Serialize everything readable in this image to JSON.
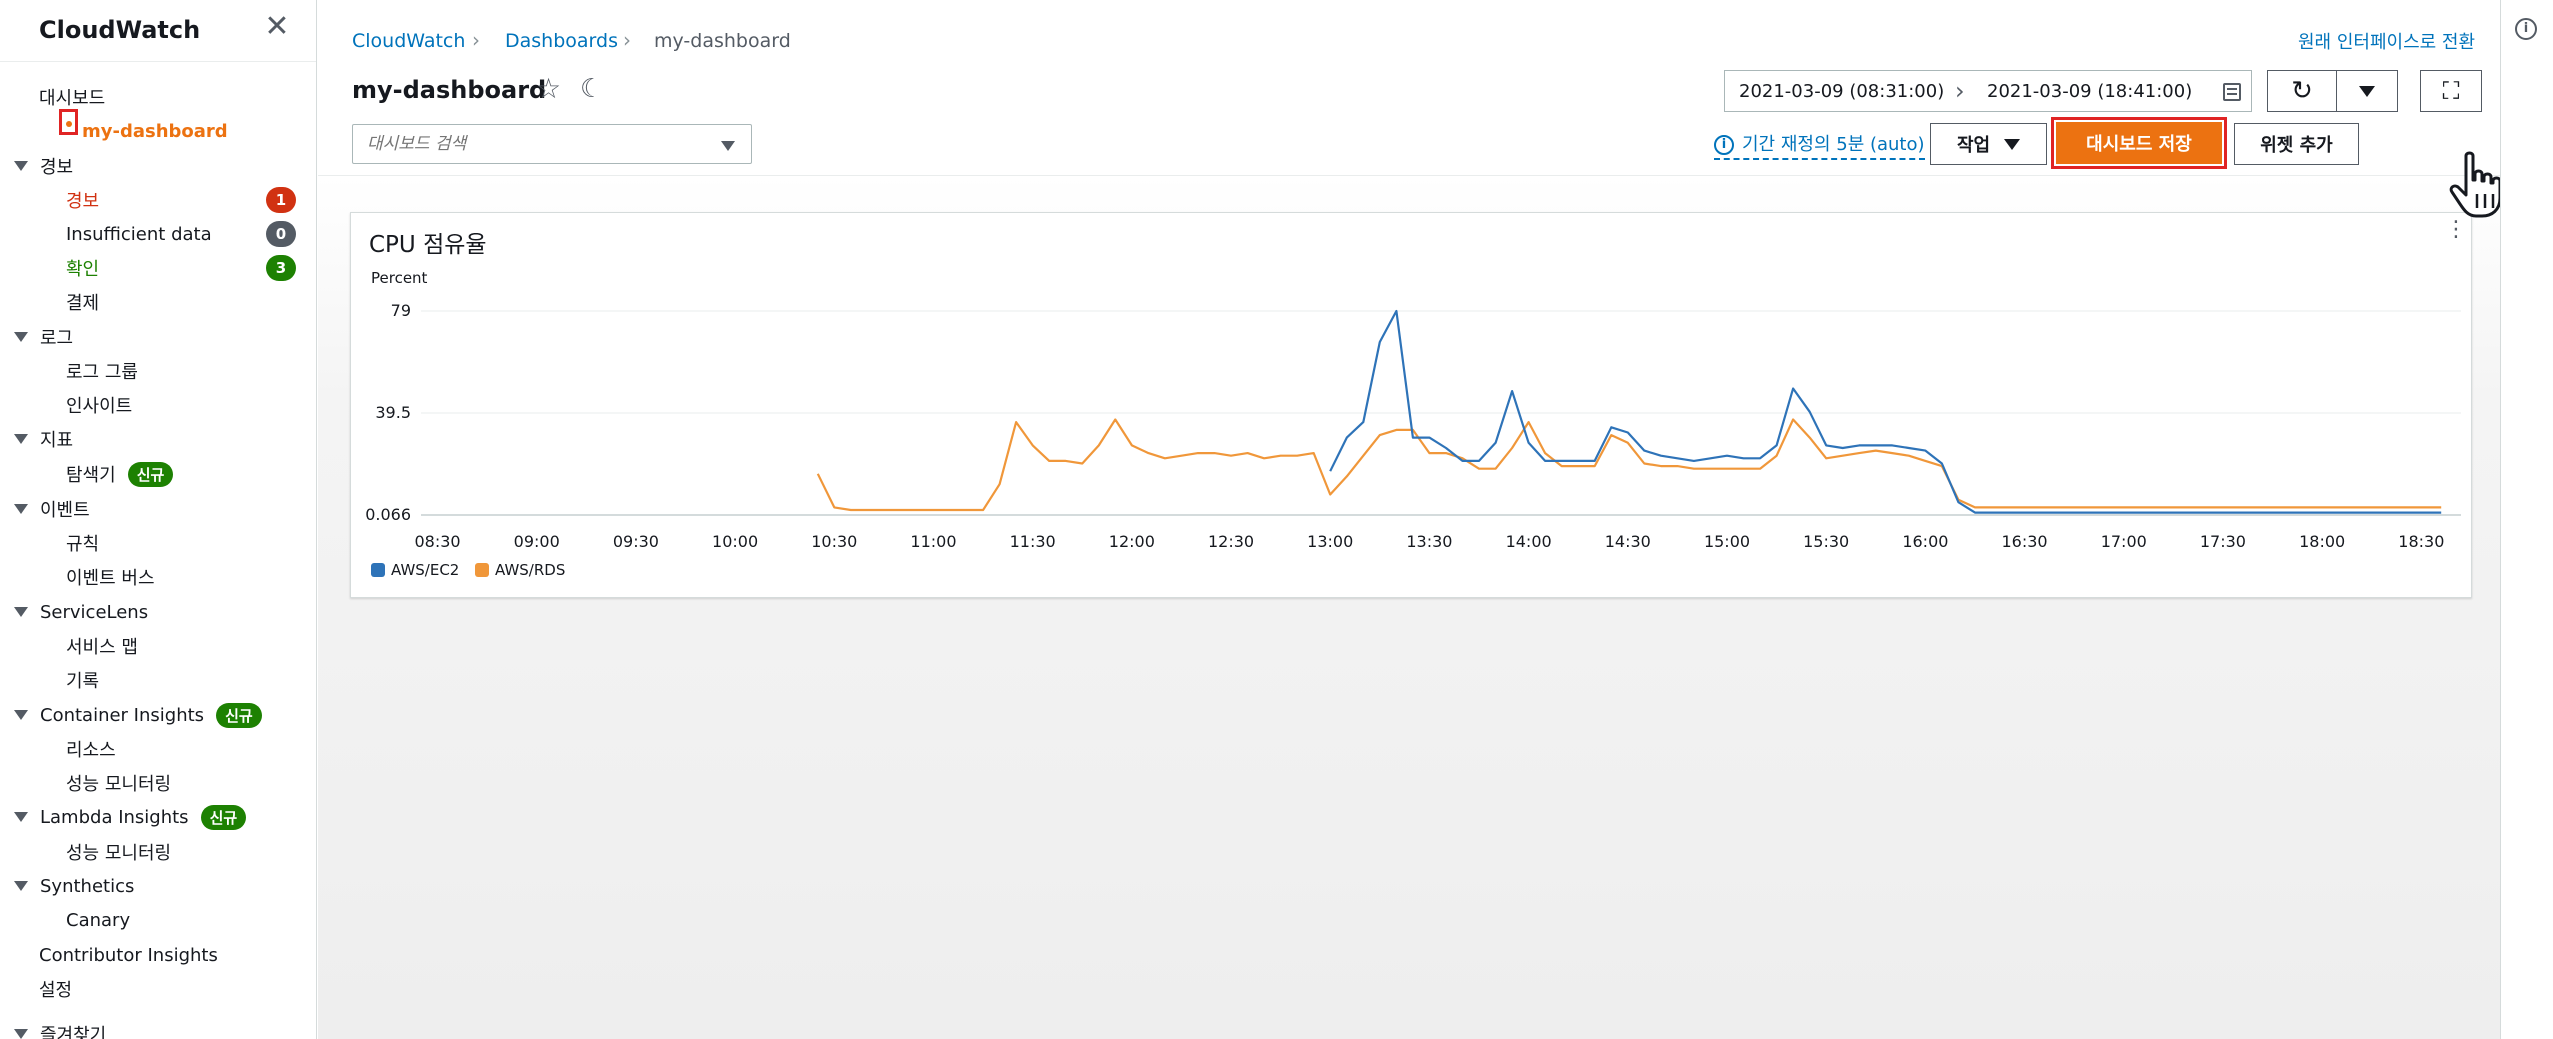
{
  "sidebar": {
    "title": "CloudWatch",
    "close_icon": "close-icon",
    "items": [
      {
        "label": "대시보드",
        "level": "head",
        "caret": false
      },
      {
        "label": "my-dashboard",
        "level": "sub",
        "active": true
      },
      {
        "label": "경보",
        "level": "head",
        "caret": true
      },
      {
        "label": "경보",
        "level": "sub",
        "color": "red",
        "badge": "1",
        "badge_color": "#d13212"
      },
      {
        "label": "Insufficient data",
        "level": "sub",
        "badge": "0",
        "badge_color": "#545b64"
      },
      {
        "label": "확인",
        "level": "sub",
        "color": "green",
        "badge": "3",
        "badge_color": "#1d8102"
      },
      {
        "label": "결제",
        "level": "sub"
      },
      {
        "label": "로그",
        "level": "head",
        "caret": true
      },
      {
        "label": "로그 그룹",
        "level": "sub"
      },
      {
        "label": "인사이트",
        "level": "sub"
      },
      {
        "label": "지표",
        "level": "head",
        "caret": true
      },
      {
        "label": "탐색기",
        "level": "sub",
        "new": "신규"
      },
      {
        "label": "이벤트",
        "level": "head",
        "caret": true
      },
      {
        "label": "규칙",
        "level": "sub"
      },
      {
        "label": "이벤트 버스",
        "level": "sub"
      },
      {
        "label": "ServiceLens",
        "level": "head",
        "caret": true
      },
      {
        "label": "서비스 맵",
        "level": "sub"
      },
      {
        "label": "기록",
        "level": "sub"
      },
      {
        "label": "Container Insights",
        "level": "head",
        "caret": true,
        "new": "신규"
      },
      {
        "label": "리소스",
        "level": "sub"
      },
      {
        "label": "성능 모니터링",
        "level": "sub"
      },
      {
        "label": "Lambda Insights",
        "level": "head",
        "caret": true,
        "new": "신규"
      },
      {
        "label": "성능 모니터링",
        "level": "sub"
      },
      {
        "label": "Synthetics",
        "level": "head",
        "caret": true
      },
      {
        "label": "Canary",
        "level": "sub"
      },
      {
        "label": "Contributor Insights",
        "level": "head",
        "caret": false
      },
      {
        "label": "설정",
        "level": "head",
        "caret": false
      },
      {
        "label": "즐겨찾기",
        "level": "head",
        "caret": true
      }
    ]
  },
  "breadcrumb": [
    "CloudWatch",
    "Dashboards",
    "my-dashboard"
  ],
  "switch_link": "원래 인터페이스로 전환",
  "page_title": "my-dashboard",
  "search": {
    "placeholder": "대시보드 검색"
  },
  "time_range": {
    "start": "2021-03-09 (08:31:00)",
    "end": "2021-03-09 (18:41:00)"
  },
  "period_label": "기간 재정의 5분 (auto)",
  "buttons": {
    "action": "작업",
    "save": "대시보드 저장",
    "add_widget": "위젯 추가"
  },
  "colors": {
    "accent": "#ec7211",
    "link": "#0073bb",
    "ec2": "#2e73b8",
    "rds": "#f0973a",
    "highlight": "#e02424"
  },
  "chart_data": {
    "type": "line",
    "title": "CPU 점유율",
    "ylabel": "Percent",
    "ylim": [
      0.066,
      79
    ],
    "y_ticks": [
      "79",
      "39.5",
      "0.066"
    ],
    "x_ticks": [
      "08:30",
      "09:00",
      "09:30",
      "10:00",
      "10:30",
      "11:00",
      "11:30",
      "12:00",
      "12:30",
      "13:00",
      "13:30",
      "14:00",
      "14:30",
      "15:00",
      "15:30",
      "16:00",
      "16:30",
      "17:00",
      "17:30",
      "18:00",
      "18:30"
    ],
    "grid": true,
    "legend_position": "bottom-left",
    "series": [
      {
        "name": "AWS/EC2",
        "color": "#2e73b8",
        "points": [
          [
            "13:00",
            17
          ],
          [
            "13:05",
            30
          ],
          [
            "13:10",
            36
          ],
          [
            "13:15",
            67
          ],
          [
            "13:20",
            79
          ],
          [
            "13:25",
            30
          ],
          [
            "13:30",
            30
          ],
          [
            "13:35",
            26
          ],
          [
            "13:40",
            21
          ],
          [
            "13:45",
            21
          ],
          [
            "13:50",
            28
          ],
          [
            "13:55",
            48
          ],
          [
            "14:00",
            28
          ],
          [
            "14:05",
            21
          ],
          [
            "14:10",
            21
          ],
          [
            "14:15",
            21
          ],
          [
            "14:20",
            21
          ],
          [
            "14:25",
            34
          ],
          [
            "14:30",
            32
          ],
          [
            "14:35",
            25
          ],
          [
            "14:40",
            23
          ],
          [
            "14:45",
            22
          ],
          [
            "14:50",
            21
          ],
          [
            "14:55",
            22
          ],
          [
            "15:00",
            23
          ],
          [
            "15:05",
            22
          ],
          [
            "15:10",
            22
          ],
          [
            "15:15",
            27
          ],
          [
            "15:20",
            49
          ],
          [
            "15:25",
            40
          ],
          [
            "15:30",
            27
          ],
          [
            "15:35",
            26
          ],
          [
            "15:40",
            27
          ],
          [
            "15:45",
            27
          ],
          [
            "15:50",
            27
          ],
          [
            "15:55",
            26
          ],
          [
            "16:00",
            25
          ],
          [
            "16:05",
            20
          ],
          [
            "16:10",
            5
          ],
          [
            "16:15",
            1
          ],
          [
            "16:30",
            1
          ],
          [
            "17:00",
            1
          ],
          [
            "17:30",
            1
          ],
          [
            "18:00",
            1
          ],
          [
            "18:30",
            1
          ],
          [
            "18:36",
            1
          ]
        ]
      },
      {
        "name": "AWS/RDS",
        "color": "#f0973a",
        "points": [
          [
            "10:25",
            16
          ],
          [
            "10:30",
            3
          ],
          [
            "10:35",
            2
          ],
          [
            "10:40",
            2
          ],
          [
            "10:45",
            2
          ],
          [
            "10:50",
            2
          ],
          [
            "10:55",
            2
          ],
          [
            "11:00",
            2
          ],
          [
            "11:05",
            2
          ],
          [
            "11:10",
            2
          ],
          [
            "11:15",
            2
          ],
          [
            "11:20",
            12
          ],
          [
            "11:25",
            36
          ],
          [
            "11:30",
            27
          ],
          [
            "11:35",
            21
          ],
          [
            "11:40",
            21
          ],
          [
            "11:45",
            20
          ],
          [
            "11:50",
            27
          ],
          [
            "11:55",
            37
          ],
          [
            "12:00",
            27
          ],
          [
            "12:05",
            24
          ],
          [
            "12:10",
            22
          ],
          [
            "12:15",
            23
          ],
          [
            "12:20",
            24
          ],
          [
            "12:25",
            24
          ],
          [
            "12:30",
            23
          ],
          [
            "12:35",
            24
          ],
          [
            "12:40",
            22
          ],
          [
            "12:45",
            23
          ],
          [
            "12:50",
            23
          ],
          [
            "12:55",
            24
          ],
          [
            "13:00",
            8
          ],
          [
            "13:05",
            15
          ],
          [
            "13:10",
            23
          ],
          [
            "13:15",
            31
          ],
          [
            "13:20",
            33
          ],
          [
            "13:25",
            33
          ],
          [
            "13:30",
            24
          ],
          [
            "13:35",
            24
          ],
          [
            "13:40",
            22
          ],
          [
            "13:45",
            18
          ],
          [
            "13:50",
            18
          ],
          [
            "13:55",
            26
          ],
          [
            "14:00",
            36
          ],
          [
            "14:05",
            24
          ],
          [
            "14:10",
            19
          ],
          [
            "14:15",
            19
          ],
          [
            "14:20",
            19
          ],
          [
            "14:25",
            31
          ],
          [
            "14:30",
            28
          ],
          [
            "14:35",
            20
          ],
          [
            "14:40",
            19
          ],
          [
            "14:45",
            19
          ],
          [
            "14:50",
            18
          ],
          [
            "14:55",
            18
          ],
          [
            "15:00",
            18
          ],
          [
            "15:05",
            18
          ],
          [
            "15:10",
            18
          ],
          [
            "15:15",
            23
          ],
          [
            "15:20",
            37
          ],
          [
            "15:25",
            30
          ],
          [
            "15:30",
            22
          ],
          [
            "15:35",
            23
          ],
          [
            "15:40",
            24
          ],
          [
            "15:45",
            25
          ],
          [
            "15:50",
            24
          ],
          [
            "15:55",
            23
          ],
          [
            "16:00",
            21
          ],
          [
            "16:05",
            19
          ],
          [
            "16:10",
            6
          ],
          [
            "16:15",
            3
          ],
          [
            "16:30",
            3
          ],
          [
            "17:00",
            3
          ],
          [
            "17:30",
            3
          ],
          [
            "18:00",
            3
          ],
          [
            "18:30",
            3
          ],
          [
            "18:36",
            3
          ]
        ]
      }
    ]
  }
}
